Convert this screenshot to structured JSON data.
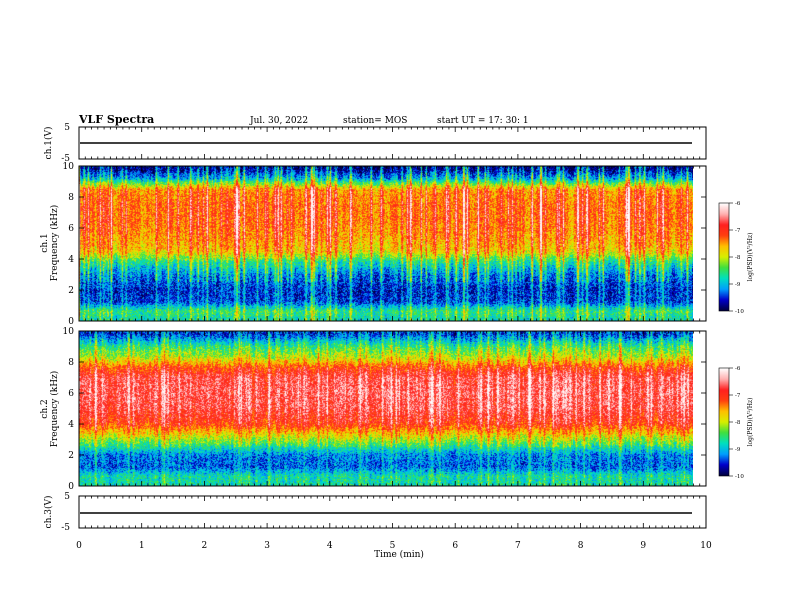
{
  "header": {
    "title": "VLF Spectra",
    "date": "Jul. 30, 2022",
    "station": "station= MOS",
    "start": "start  UT =   17: 30: 1"
  },
  "colors": {
    "colormap": [
      "#000040",
      "#0000cc",
      "#00a0ff",
      "#00e0c0",
      "#40e040",
      "#d8f000",
      "#ffc000",
      "#ff4010",
      "#ff2020",
      "#ffb0b0",
      "#ffffff"
    ]
  },
  "chart_data": [
    {
      "type": "line",
      "panel": "ch.1 waveform",
      "ylabel": "ch.1(V)",
      "ylim": [
        -5,
        5
      ],
      "yticks": [
        "5",
        "-5"
      ],
      "xlim": [
        0,
        10
      ],
      "trace_level_V": -1.0
    },
    {
      "type": "heatmap",
      "panel": "ch.1 spectrogram",
      "ylabel": "ch.1\nFrequency  (kHz)",
      "ylabel_line1": "ch.1",
      "ylabel_line2": "Frequency  (kHz)",
      "ylim": [
        0,
        10
      ],
      "yticks": [
        "0",
        "2",
        "4",
        "6",
        "8",
        "10"
      ],
      "xlim": [
        0,
        9.83
      ],
      "data_end_min": 9.83,
      "colorbar": {
        "label": "log(PSD)(V²/Hz)",
        "range": [
          -10,
          -6
        ],
        "ticks": [
          "-6",
          "-7",
          "-8",
          "-9",
          "-10"
        ]
      },
      "profile": [
        {
          "f": 0.2,
          "level": 0.3
        },
        {
          "f": 0.6,
          "level": 0.35
        },
        {
          "f": 1.2,
          "level": 0.12
        },
        {
          "f": 2.0,
          "level": 0.1
        },
        {
          "f": 3.0,
          "level": 0.18
        },
        {
          "f": 3.8,
          "level": 0.32
        },
        {
          "f": 4.5,
          "level": 0.55
        },
        {
          "f": 5.5,
          "level": 0.62
        },
        {
          "f": 6.5,
          "level": 0.66
        },
        {
          "f": 7.5,
          "level": 0.66
        },
        {
          "f": 8.5,
          "level": 0.62
        },
        {
          "f": 9.2,
          "level": 0.22
        },
        {
          "f": 9.8,
          "level": 0.05
        }
      ]
    },
    {
      "type": "heatmap",
      "panel": "ch.2 spectrogram",
      "ylabel_line1": "ch.2",
      "ylabel_line2": "Frequency  (kHz)",
      "ylim": [
        0,
        10
      ],
      "yticks": [
        "0",
        "2",
        "4",
        "6",
        "8",
        "10"
      ],
      "xlim": [
        0,
        9.83
      ],
      "data_end_min": 9.83,
      "colorbar": {
        "label": "log(PSD)(V²/Hz)",
        "range": [
          -10,
          -6
        ],
        "ticks": [
          "-6",
          "-7",
          "-8",
          "-9",
          "-10"
        ]
      },
      "profile": [
        {
          "f": 0.2,
          "level": 0.3
        },
        {
          "f": 0.6,
          "level": 0.3
        },
        {
          "f": 1.2,
          "level": 0.15
        },
        {
          "f": 2.0,
          "level": 0.18
        },
        {
          "f": 3.0,
          "level": 0.45
        },
        {
          "f": 4.0,
          "level": 0.72
        },
        {
          "f": 5.0,
          "level": 0.8
        },
        {
          "f": 6.0,
          "level": 0.82
        },
        {
          "f": 7.0,
          "level": 0.8
        },
        {
          "f": 7.6,
          "level": 0.7
        },
        {
          "f": 8.3,
          "level": 0.48
        },
        {
          "f": 9.0,
          "level": 0.35
        },
        {
          "f": 9.8,
          "level": 0.12
        }
      ]
    },
    {
      "type": "line",
      "panel": "ch.3 waveform",
      "ylabel": "ch.3(V)",
      "ylim": [
        -5,
        5
      ],
      "yticks": [
        "5",
        "-5"
      ],
      "xlim": [
        0,
        10
      ],
      "trace_level_V": -1.0
    }
  ],
  "xaxis": {
    "label": "Time  (min)",
    "ticks": [
      "0",
      "1",
      "2",
      "3",
      "4",
      "5",
      "6",
      "7",
      "8",
      "9",
      "10"
    ]
  }
}
